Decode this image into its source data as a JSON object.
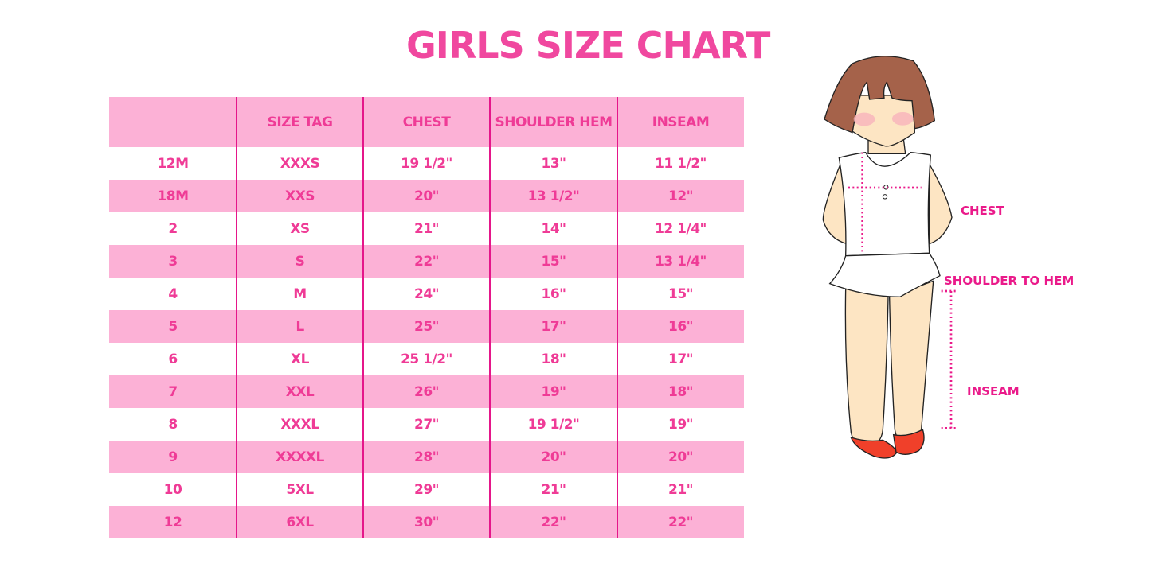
{
  "title": "GIRLS SIZE CHART",
  "table": {
    "headers": [
      "",
      "SIZE TAG",
      "CHEST",
      "SHOULDER HEM",
      "INSEAM"
    ],
    "rows": [
      [
        "12M",
        "XXXS",
        "19 1/2\"",
        "13\"",
        "11 1/2\""
      ],
      [
        "18M",
        "XXS",
        "20\"",
        "13 1/2\"",
        "12\""
      ],
      [
        "2",
        "XS",
        "21\"",
        "14\"",
        "12 1/4\""
      ],
      [
        "3",
        "S",
        "22\"",
        "15\"",
        "13 1/4\""
      ],
      [
        "4",
        "M",
        "24\"",
        "16\"",
        "15\""
      ],
      [
        "5",
        "L",
        "25\"",
        "17\"",
        "16\""
      ],
      [
        "6",
        "XL",
        "25 1/2\"",
        "18\"",
        "17\""
      ],
      [
        "7",
        "XXL",
        "26\"",
        "19\"",
        "18\""
      ],
      [
        "8",
        "XXXL",
        "27\"",
        "19 1/2\"",
        "19\""
      ],
      [
        "9",
        "XXXXL",
        "28\"",
        "20\"",
        "20\""
      ],
      [
        "10",
        "5XL",
        "29\"",
        "21\"",
        "21\""
      ],
      [
        "12",
        "6XL",
        "30\"",
        "22\"",
        "22\""
      ]
    ]
  },
  "illustration": {
    "labels": {
      "chest": "CHEST",
      "shoulder": "SHOULDER TO HEM",
      "inseam": "INSEAM"
    }
  },
  "colors": {
    "accent": "#f0489f",
    "row_pink": "#fcb1d6",
    "divider": "#e5168a"
  }
}
